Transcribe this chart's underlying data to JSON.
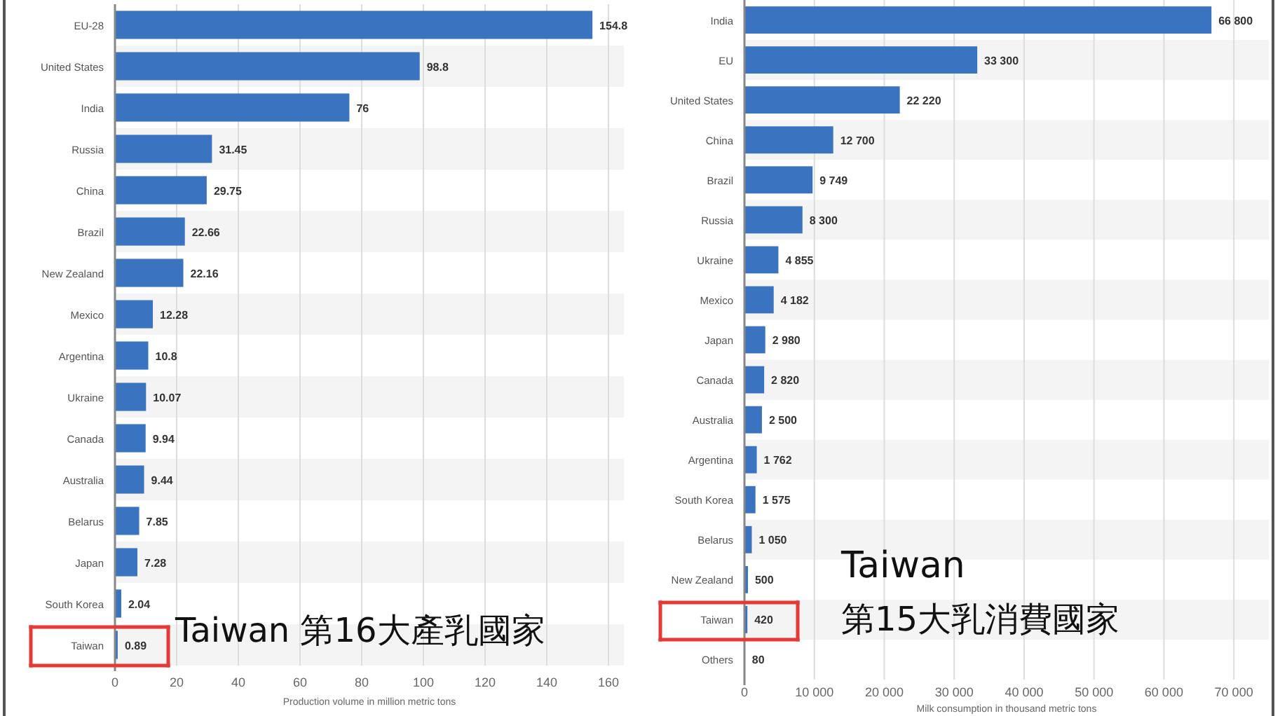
{
  "chart_data": [
    {
      "type": "bar",
      "orientation": "horizontal",
      "categories": [
        "EU-28",
        "United States",
        "India",
        "Russia",
        "China",
        "Brazil",
        "New Zealand",
        "Mexico",
        "Argentina",
        "Ukraine",
        "Canada",
        "Australia",
        "Belarus",
        "Japan",
        "South Korea",
        "Taiwan"
      ],
      "values": [
        154.8,
        98.8,
        76,
        31.45,
        29.75,
        22.66,
        22.16,
        12.28,
        10.8,
        10.07,
        9.94,
        9.44,
        7.85,
        7.28,
        2.04,
        0.89
      ],
      "color": "#3a73c0",
      "data_labels": true,
      "xlim": [
        0,
        165
      ],
      "xticks": [
        0,
        20,
        40,
        60,
        80,
        100,
        120,
        140,
        160
      ],
      "xlabel": "Production volume in million metric tons",
      "grid": "x",
      "annotations": [
        "Taiwan 第16大產乳國家"
      ]
    },
    {
      "type": "bar",
      "orientation": "horizontal",
      "categories": [
        "India",
        "EU",
        "United States",
        "China",
        "Brazil",
        "Russia",
        "Ukraine",
        "Mexico",
        "Japan",
        "Canada",
        "Australia",
        "Argentina",
        "South Korea",
        "Belarus",
        "New Zealand",
        "Taiwan",
        "Others"
      ],
      "values": [
        66800,
        33300,
        22220,
        12700,
        9749,
        8300,
        4855,
        4182,
        2980,
        2820,
        2500,
        1762,
        1575,
        1050,
        500,
        420,
        80
      ],
      "value_labels": [
        "66 800",
        "33 300",
        "22 220",
        "12 700",
        "9 749",
        "8 300",
        "4 855",
        "4 182",
        "2 980",
        "2 820",
        "2 500",
        "1 762",
        "1 575",
        "1 050",
        "500",
        "420",
        "80"
      ],
      "color": "#3a73c0",
      "xlim": [
        0,
        75000
      ],
      "xticks": [
        {
          "value": 0,
          "label": "0"
        },
        {
          "value": 10000,
          "label": "10 000"
        },
        {
          "value": 20000,
          "label": "20 000"
        },
        {
          "value": 30000,
          "label": "30 000"
        },
        {
          "value": 40000,
          "label": "40 000"
        },
        {
          "value": 50000,
          "label": "50 000"
        },
        {
          "value": 60000,
          "label": "60 000"
        },
        {
          "value": 70000,
          "label": "70 000"
        }
      ],
      "xlabel": "Milk consumption in thousand metric tons",
      "grid": "x",
      "annotations": [
        "Taiwan",
        "第15大乳消費國家"
      ]
    }
  ]
}
